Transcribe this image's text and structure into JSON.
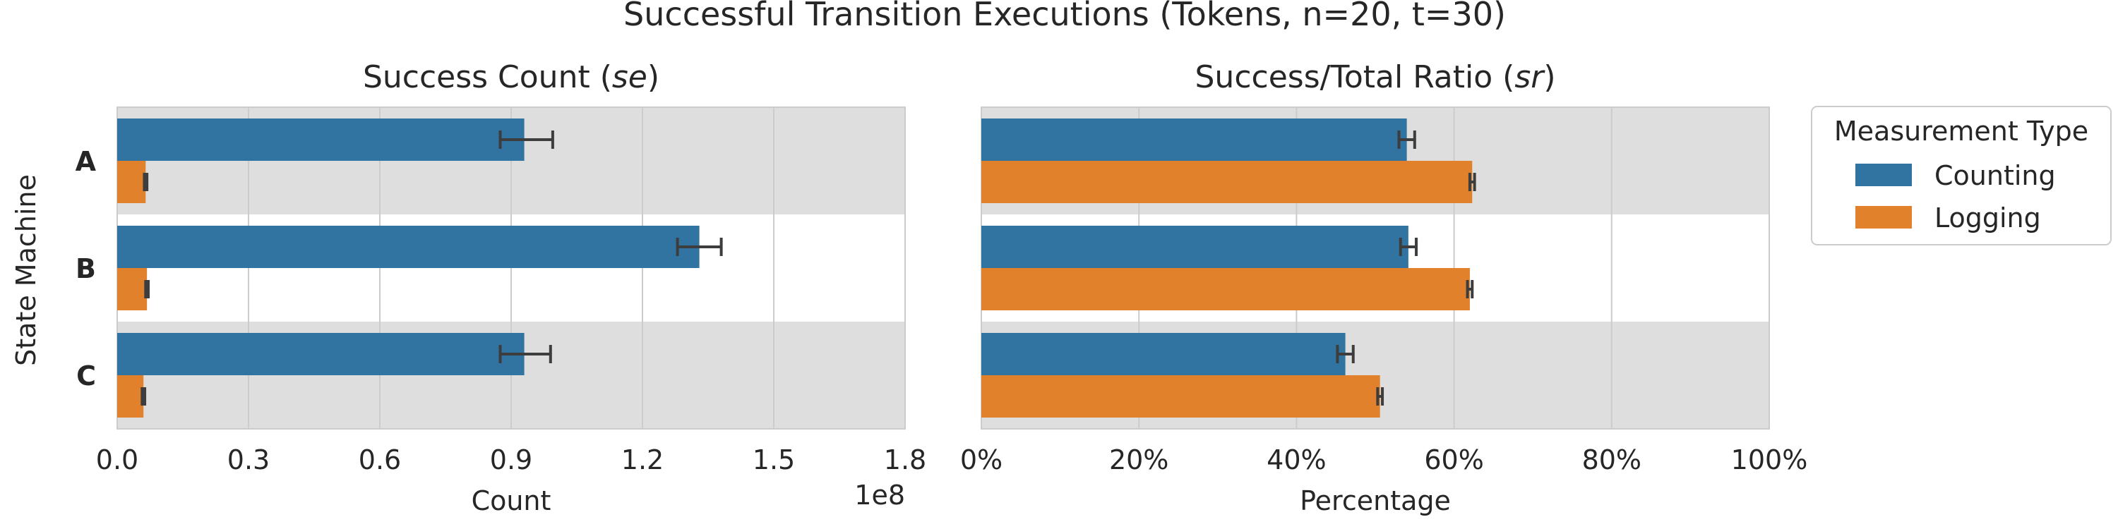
{
  "figure": {
    "suptitle": "Successful Transition Executions (Tokens, n=20, t=30)",
    "ylabel": "State Machine"
  },
  "legend": {
    "title": "Measurement Type",
    "entries": [
      {
        "label": "Counting",
        "color": "#3274a1"
      },
      {
        "label": "Logging",
        "color": "#e1812c"
      }
    ]
  },
  "colors": {
    "counting": "#3274a1",
    "logging": "#e1812c",
    "band": "#dedede",
    "grid": "#cccccc",
    "errorbar": "#3d3d3d"
  },
  "chart_data": [
    {
      "type": "bar",
      "orientation": "horizontal",
      "title_prefix": "Success Count (",
      "title_italic": "se",
      "title_suffix": ")",
      "xlabel": "Count",
      "offset_label": "1e8",
      "xlim": [
        0,
        1.8
      ],
      "ticks": [
        0,
        0.3,
        0.6,
        0.9,
        1.2,
        1.5,
        1.8
      ],
      "tick_labels": [
        "0.0",
        "0.3",
        "0.6",
        "0.9",
        "1.2",
        "1.5",
        "1.8"
      ],
      "categories": [
        "A",
        "B",
        "C"
      ],
      "series": [
        {
          "name": "Counting",
          "values": [
            0.93,
            1.33,
            0.93
          ],
          "errors": [
            [
              0.875,
              0.995
            ],
            [
              1.28,
              1.38
            ],
            [
              0.875,
              0.99
            ]
          ]
        },
        {
          "name": "Logging",
          "values": [
            0.065,
            0.068,
            0.06
          ],
          "errors": [
            [
              0.062,
              0.068
            ],
            [
              0.065,
              0.071
            ],
            [
              0.057,
              0.063
            ]
          ]
        }
      ]
    },
    {
      "type": "bar",
      "orientation": "horizontal",
      "title_prefix": "Success/Total Ratio (",
      "title_italic": "sr",
      "title_suffix": ")",
      "xlabel": "Percentage",
      "offset_label": "",
      "xlim": [
        0,
        100
      ],
      "ticks": [
        0,
        20,
        40,
        60,
        80,
        100
      ],
      "tick_labels": [
        "0%",
        "20%",
        "40%",
        "60%",
        "80%",
        "100%"
      ],
      "categories": [
        "A",
        "B",
        "C"
      ],
      "series": [
        {
          "name": "Counting",
          "values": [
            54.0,
            54.2,
            46.2
          ],
          "errors": [
            [
              53.0,
              55.0
            ],
            [
              53.2,
              55.2
            ],
            [
              45.2,
              47.2
            ]
          ]
        },
        {
          "name": "Logging",
          "values": [
            62.3,
            62.0,
            50.6
          ],
          "errors": [
            [
              62.0,
              62.6
            ],
            [
              61.7,
              62.3
            ],
            [
              50.3,
              50.9
            ]
          ]
        }
      ]
    }
  ]
}
